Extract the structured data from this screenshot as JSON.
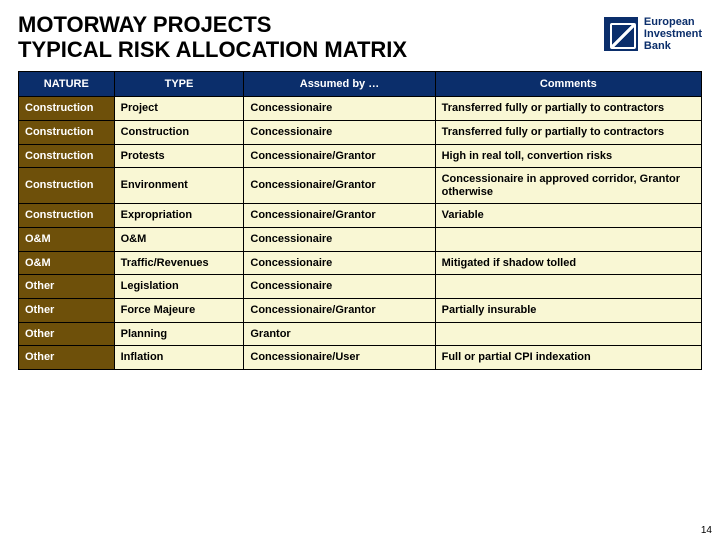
{
  "title_line1": "MOTORWAY PROJECTS",
  "title_line2": "TYPICAL RISK ALLOCATION MATRIX",
  "logo": {
    "line1": "European",
    "line2": "Investment",
    "line3": "Bank"
  },
  "page_number": "14",
  "colors": {
    "header_bg": "#0b2e6b",
    "header_text": "#ffffff",
    "nature_construction_bg": "#6e5ico0a",
    "nature_construction": "#6e500a",
    "nature_om": "#6e500a",
    "nature_other": "#6e500a",
    "cell_bg": "#f9f7d4",
    "border": "#000000"
  },
  "table": {
    "headers": [
      "NATURE",
      "TYPE",
      "Assumed by …",
      "Comments"
    ],
    "rows": [
      {
        "nature": "Construction",
        "type": "Project",
        "assumed": "Concessionaire",
        "comments": "Transferred fully or partially to contractors",
        "nature_bg": "#6e500a"
      },
      {
        "nature": "Construction",
        "type": "Construction",
        "assumed": "Concessionaire",
        "comments": "Transferred fully or partially to contractors",
        "nature_bg": "#6e500a"
      },
      {
        "nature": "Construction",
        "type": "Protests",
        "assumed": "Concessionaire/Grantor",
        "comments": "High in real toll, convertion risks",
        "nature_bg": "#6e500a"
      },
      {
        "nature": "Construction",
        "type": "Environment",
        "assumed": "Concessionaire/Grantor",
        "comments": "Concessionaire in approved corridor, Grantor otherwise",
        "nature_bg": "#6e500a"
      },
      {
        "nature": "Construction",
        "type": "Expropriation",
        "assumed": "Concessionaire/Grantor",
        "comments": "Variable",
        "nature_bg": "#6e500a"
      },
      {
        "nature": "O&M",
        "type": "O&M",
        "assumed": "Concessionaire",
        "comments": "",
        "nature_bg": "#6e500a"
      },
      {
        "nature": "O&M",
        "type": "Traffic/Revenues",
        "assumed": "Concessionaire",
        "comments": "Mitigated if shadow tolled",
        "nature_bg": "#6e500a"
      },
      {
        "nature": "Other",
        "type": "Legislation",
        "assumed": "Concessionaire",
        "comments": "",
        "nature_bg": "#6e500a"
      },
      {
        "nature": "Other",
        "type": "Force Majeure",
        "assumed": "Concessionaire/Grantor",
        "comments": "Partially insurable",
        "nature_bg": "#6e500a"
      },
      {
        "nature": "Other",
        "type": "Planning",
        "assumed": "Grantor",
        "comments": "",
        "nature_bg": "#6e500a"
      },
      {
        "nature": "Other",
        "type": "Inflation",
        "assumed": "Concessionaire/User",
        "comments": "Full or partial CPI indexation",
        "nature_bg": "#6e500a"
      }
    ]
  }
}
